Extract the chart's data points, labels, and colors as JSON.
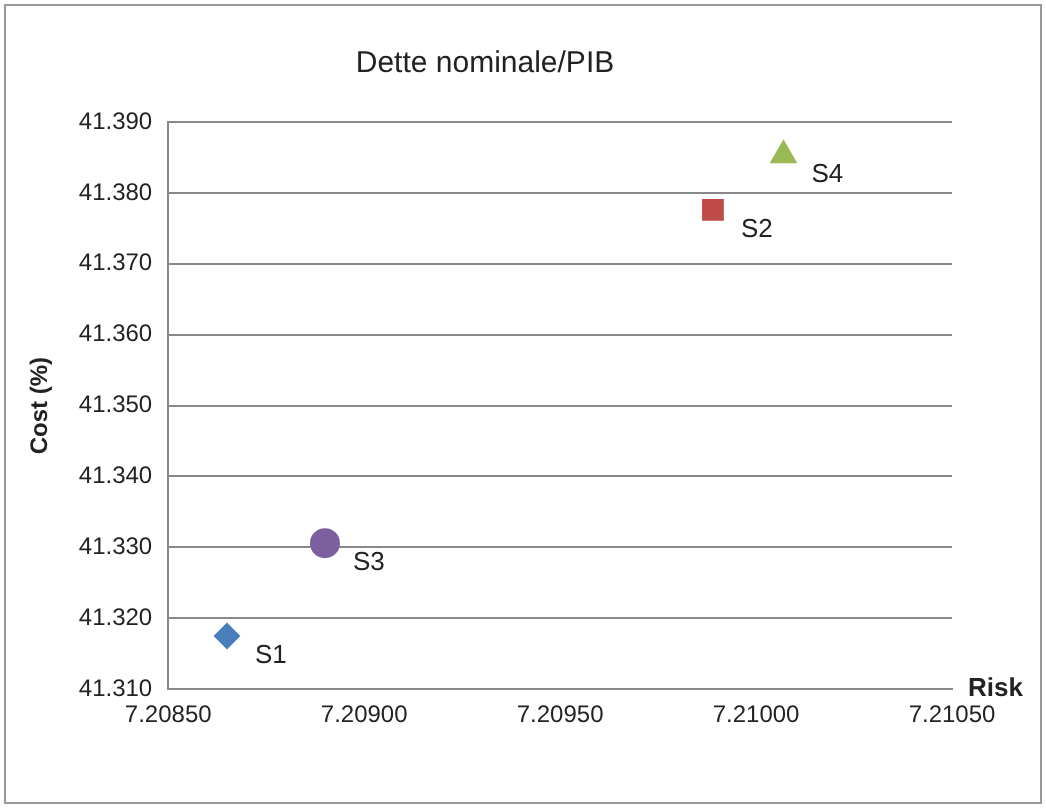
{
  "chart_data": {
    "type": "scatter",
    "title": "Dette nominale/PIB",
    "xlabel": "Risk",
    "ylabel": "Cost (%)",
    "series": [
      {
        "name": "S1",
        "color": "#4a7ebb",
        "marker": "diamond",
        "x": [
          7.20865
        ],
        "values": [
          41.3175
        ]
      },
      {
        "name": "S2",
        "color": "#be4b48",
        "marker": "square",
        "x": [
          7.20989
        ],
        "values": [
          41.3776
        ]
      },
      {
        "name": "S3",
        "color": "#7d5fa0",
        "marker": "circle",
        "x": [
          7.2089
        ],
        "values": [
          41.3306
        ]
      },
      {
        "name": "S4",
        "color": "#98b954",
        "marker": "triangle",
        "x": [
          7.21007
        ],
        "values": [
          41.3853
        ]
      }
    ],
    "xlim": [
      7.2085,
      7.2105
    ],
    "xticks": [
      {
        "value": 7.2085,
        "label": "7.20850"
      },
      {
        "value": 7.209,
        "label": "7.20900"
      },
      {
        "value": 7.2095,
        "label": "7.20950"
      },
      {
        "value": 7.21,
        "label": "7.21000"
      },
      {
        "value": 7.2105,
        "label": "7.21050"
      }
    ],
    "ylim": [
      41.31,
      41.39
    ],
    "yticks": [
      {
        "value": 41.31,
        "label": "41.310"
      },
      {
        "value": 41.32,
        "label": "41.320"
      },
      {
        "value": 41.33,
        "label": "41.330"
      },
      {
        "value": 41.34,
        "label": "41.340"
      },
      {
        "value": 41.35,
        "label": "41.350"
      },
      {
        "value": 41.36,
        "label": "41.360"
      },
      {
        "value": 41.37,
        "label": "41.370"
      },
      {
        "value": 41.38,
        "label": "41.380"
      },
      {
        "value": 41.39,
        "label": "41.390"
      }
    ],
    "grid": "y",
    "legend": false
  }
}
